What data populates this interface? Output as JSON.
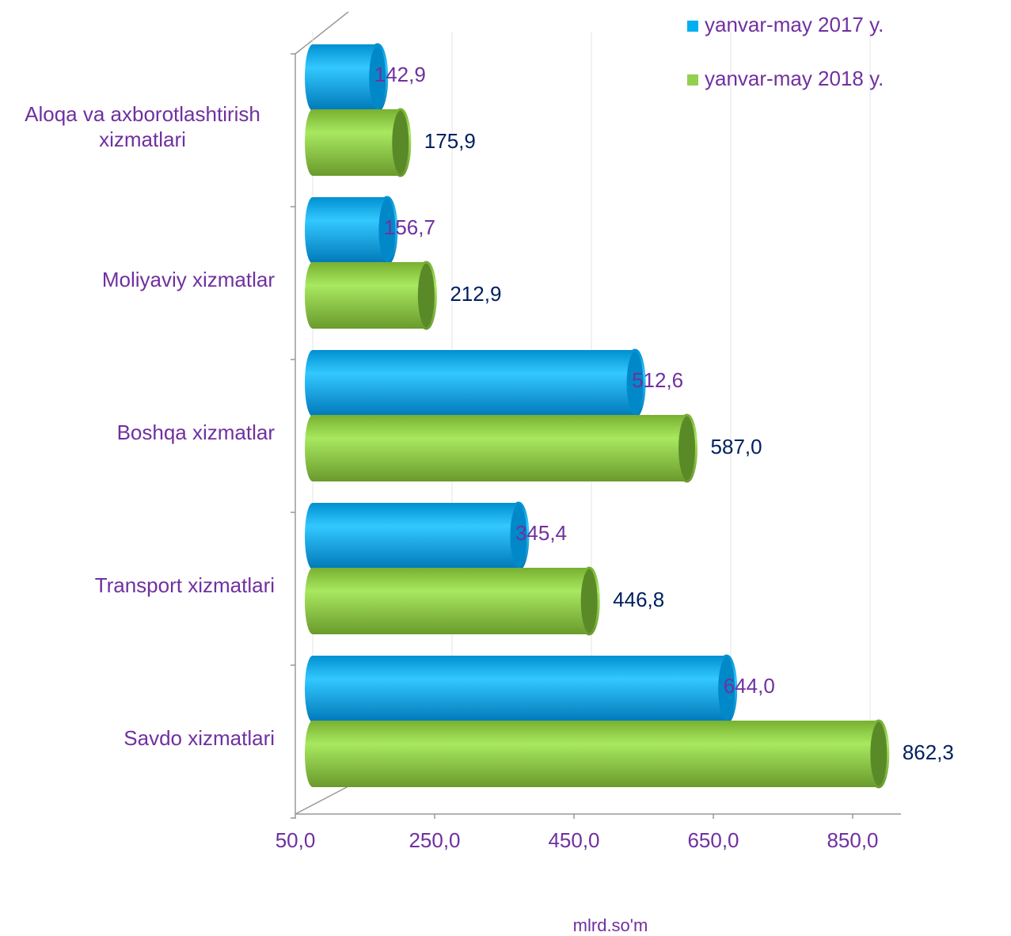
{
  "chart_data": {
    "type": "bar",
    "orientation": "horizontal",
    "categories": [
      "Aloqa va axborotlashtirish xizmatlari",
      "Moliyaviy xizmatlar",
      "Boshqa xizmatlar",
      "Transport xizmatlari",
      "Savdo xizmatlari"
    ],
    "series": [
      {
        "name": "yanvar-may 2017 y.",
        "color": "#00b0f0",
        "label_color": "#7030a0",
        "values": [
          142.9,
          156.7,
          512.6,
          345.4,
          644.0
        ],
        "value_labels": [
          "142,9",
          "156,7",
          "512,6",
          "345,4",
          "644,0"
        ]
      },
      {
        "name": "yanvar-may 2018 y.",
        "color": "#92d050",
        "label_color": "#002060",
        "values": [
          175.9,
          212.9,
          587.0,
          446.8,
          862.3
        ],
        "value_labels": [
          "175,9",
          "212,9",
          "587,0",
          "446,8",
          "862,3"
        ]
      }
    ],
    "xlim": [
      50,
      920
    ],
    "xticks": [
      {
        "value": 50,
        "label": "50,0"
      },
      {
        "value": 250,
        "label": "250,0"
      },
      {
        "value": 450,
        "label": "450,0"
      },
      {
        "value": 650,
        "label": "650,0"
      },
      {
        "value": 850,
        "label": "850,0"
      }
    ],
    "xlabel": "mlrd.so'm",
    "grid": true,
    "legend": "top-right"
  }
}
